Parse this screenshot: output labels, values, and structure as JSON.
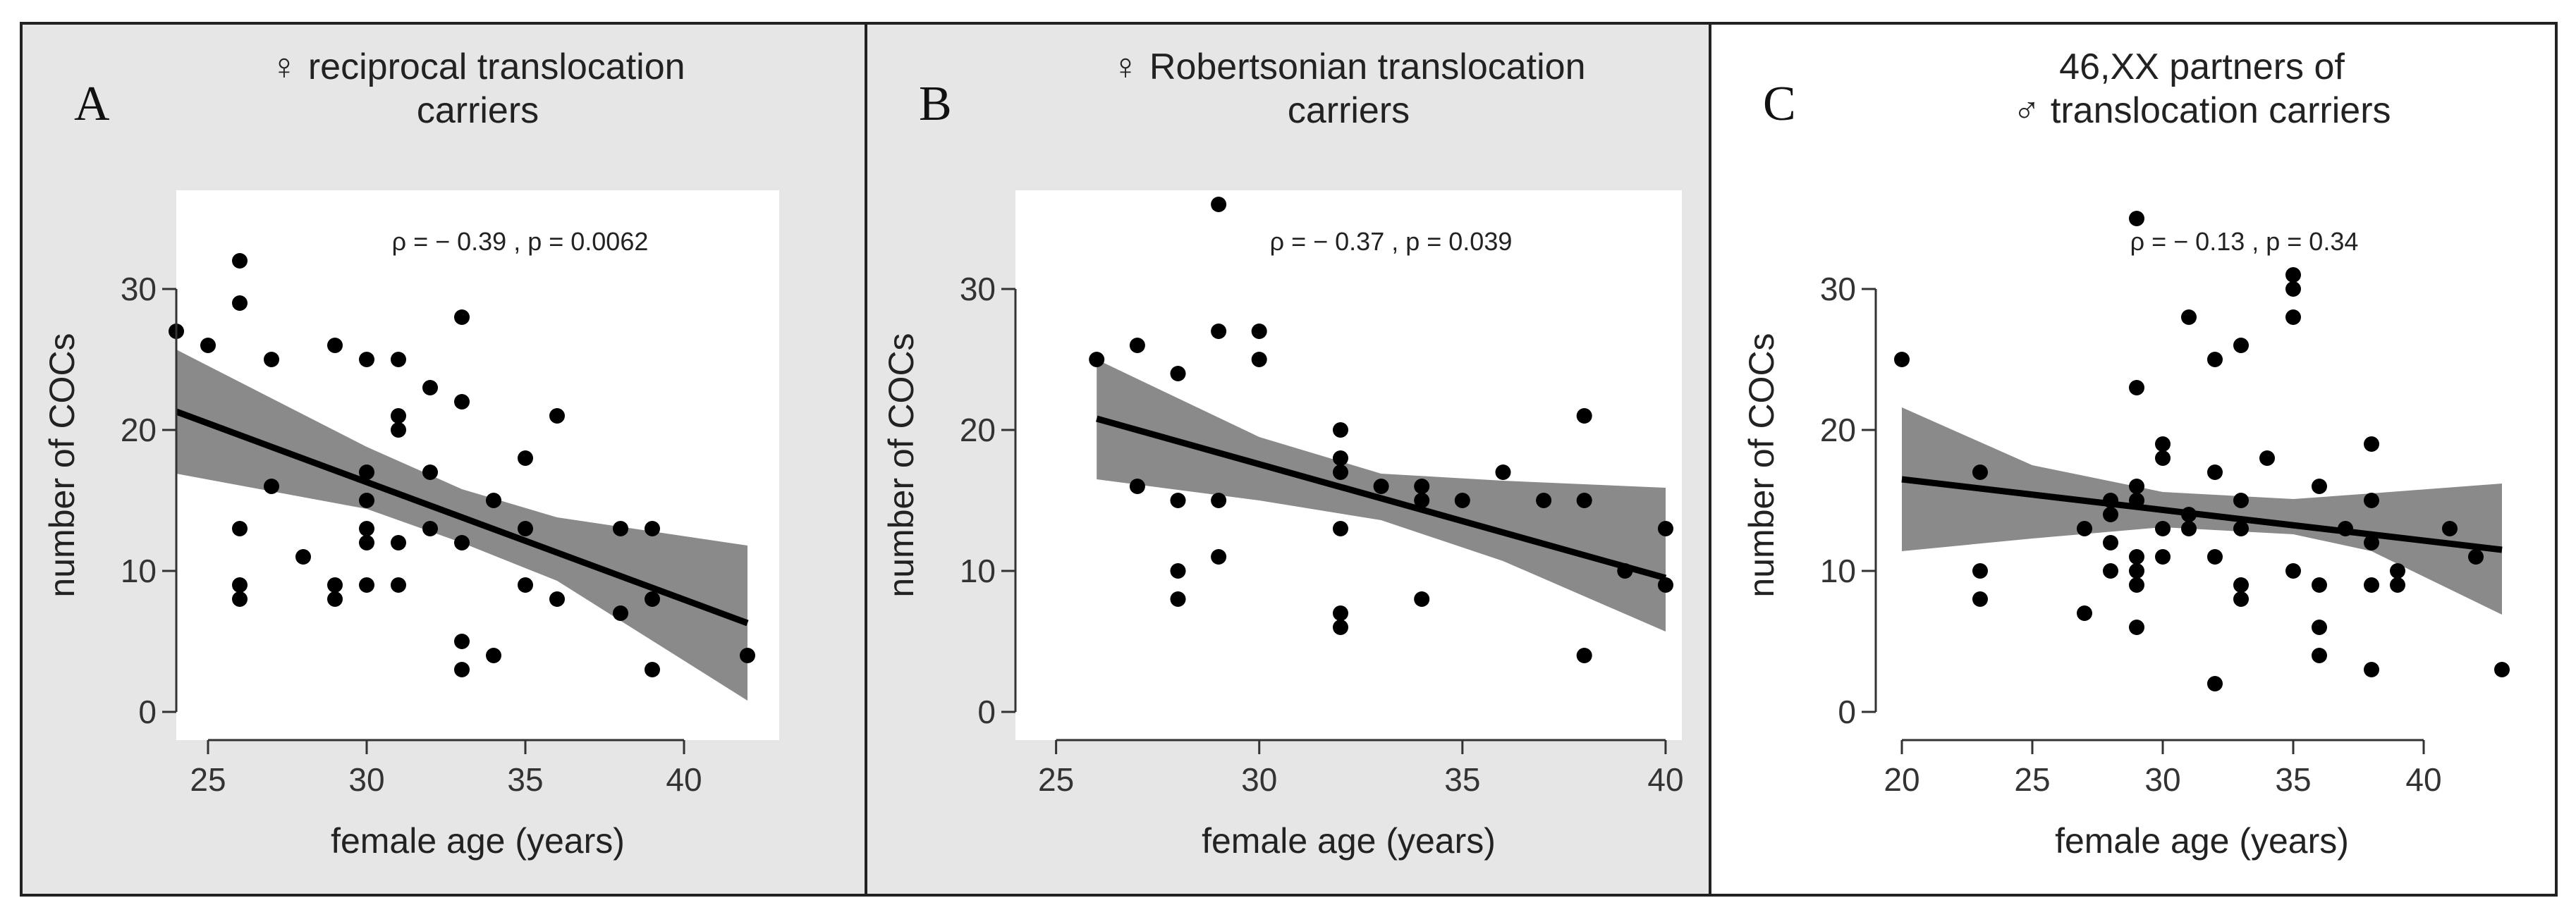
{
  "chart_data": [
    {
      "type": "scatter",
      "panel_label": "A",
      "title": [
        "♀ reciprocal translocation",
        "carriers"
      ],
      "xlabel": "female age (years)",
      "ylabel": "number of COCs",
      "annotation": "ρ  =  − 0.39  ,  p  =  0.0062",
      "xlim": [
        24,
        43
      ],
      "ylim": [
        -2,
        37
      ],
      "xticks": [
        25,
        30,
        35,
        40
      ],
      "yticks": [
        0,
        10,
        20,
        30
      ],
      "background": "#e6e6e6",
      "points": [
        [
          24,
          27
        ],
        [
          25,
          26
        ],
        [
          26,
          32
        ],
        [
          26,
          29
        ],
        [
          26,
          13
        ],
        [
          26,
          9
        ],
        [
          26,
          8
        ],
        [
          27,
          25
        ],
        [
          27,
          16
        ],
        [
          28,
          11
        ],
        [
          29,
          26
        ],
        [
          29,
          9
        ],
        [
          29,
          8
        ],
        [
          30,
          25
        ],
        [
          30,
          17
        ],
        [
          30,
          15
        ],
        [
          30,
          13
        ],
        [
          30,
          12
        ],
        [
          30,
          9
        ],
        [
          31,
          25
        ],
        [
          31,
          21
        ],
        [
          31,
          20
        ],
        [
          31,
          12
        ],
        [
          31,
          9
        ],
        [
          32,
          23
        ],
        [
          32,
          17
        ],
        [
          32,
          13
        ],
        [
          33,
          28
        ],
        [
          33,
          22
        ],
        [
          33,
          12
        ],
        [
          33,
          5
        ],
        [
          33,
          3
        ],
        [
          34,
          15
        ],
        [
          34,
          4
        ],
        [
          35,
          18
        ],
        [
          35,
          13
        ],
        [
          35,
          9
        ],
        [
          36,
          21
        ],
        [
          36,
          8
        ],
        [
          38,
          13
        ],
        [
          38,
          7
        ],
        [
          39,
          13
        ],
        [
          39,
          8
        ],
        [
          39,
          3
        ],
        [
          42,
          4
        ]
      ],
      "fit": {
        "x": [
          24,
          42
        ],
        "y": [
          21.3,
          6.3
        ]
      },
      "band": {
        "x": [
          24,
          30,
          33,
          36,
          42
        ],
        "upper": [
          25.7,
          18.8,
          15.8,
          13.8,
          11.8
        ],
        "lower": [
          16.9,
          14.4,
          12.0,
          9.3,
          0.8
        ]
      }
    },
    {
      "type": "scatter",
      "panel_label": "B",
      "title": [
        "♀ Robertsonian translocation",
        "carriers"
      ],
      "xlabel": "female age (years)",
      "ylabel": "number of COCs",
      "annotation": "ρ  =  − 0.37  ,  p  =  0.039",
      "xlim": [
        24,
        40.4
      ],
      "ylim": [
        -2,
        37
      ],
      "xticks": [
        25,
        30,
        35,
        40
      ],
      "yticks": [
        0,
        10,
        20,
        30
      ],
      "background": "#e6e6e6",
      "points": [
        [
          26,
          25
        ],
        [
          27,
          26
        ],
        [
          27,
          16
        ],
        [
          28,
          24
        ],
        [
          28,
          15
        ],
        [
          28,
          10
        ],
        [
          28,
          8
        ],
        [
          29,
          36
        ],
        [
          29,
          27
        ],
        [
          29,
          15
        ],
        [
          29,
          11
        ],
        [
          30,
          27
        ],
        [
          30,
          25
        ],
        [
          32,
          20
        ],
        [
          32,
          18
        ],
        [
          32,
          17
        ],
        [
          32,
          13
        ],
        [
          32,
          7
        ],
        [
          32,
          6
        ],
        [
          33,
          16
        ],
        [
          34,
          16
        ],
        [
          34,
          15
        ],
        [
          34,
          8
        ],
        [
          35,
          15
        ],
        [
          36,
          17
        ],
        [
          37,
          15
        ],
        [
          38,
          21
        ],
        [
          38,
          15
        ],
        [
          38,
          4
        ],
        [
          39,
          10
        ],
        [
          40,
          13
        ],
        [
          40,
          9
        ]
      ],
      "fit": {
        "x": [
          26,
          40
        ],
        "y": [
          20.8,
          9.5
        ]
      },
      "band": {
        "x": [
          26,
          30,
          33,
          36,
          40
        ],
        "upper": [
          25.0,
          19.5,
          16.9,
          16.4,
          15.9
        ],
        "lower": [
          16.5,
          15.0,
          13.6,
          10.7,
          5.7
        ]
      }
    },
    {
      "type": "scatter",
      "panel_label": "C",
      "title": [
        "46,XX partners of",
        "♂ translocation carriers"
      ],
      "xlabel": "female age (years)",
      "ylabel": "number of COCs",
      "annotation": "ρ  =  − 0.13  ,  p  =  0.34",
      "xlim": [
        19,
        44
      ],
      "ylim": [
        -2,
        37
      ],
      "xticks": [
        20,
        25,
        30,
        35,
        40
      ],
      "yticks": [
        0,
        10,
        20,
        30
      ],
      "background": "#ffffff",
      "points": [
        [
          20,
          25
        ],
        [
          23,
          17
        ],
        [
          23,
          10
        ],
        [
          23,
          8
        ],
        [
          27,
          13
        ],
        [
          27,
          7
        ],
        [
          28,
          15
        ],
        [
          28,
          14
        ],
        [
          28,
          12
        ],
        [
          28,
          10
        ],
        [
          29,
          35
        ],
        [
          29,
          23
        ],
        [
          29,
          16
        ],
        [
          29,
          15
        ],
        [
          29,
          11
        ],
        [
          29,
          10
        ],
        [
          29,
          9
        ],
        [
          29,
          6
        ],
        [
          30,
          19
        ],
        [
          30,
          18
        ],
        [
          30,
          13
        ],
        [
          30,
          11
        ],
        [
          31,
          28
        ],
        [
          31,
          14
        ],
        [
          31,
          13
        ],
        [
          32,
          25
        ],
        [
          32,
          17
        ],
        [
          32,
          11
        ],
        [
          32,
          2
        ],
        [
          33,
          26
        ],
        [
          33,
          15
        ],
        [
          33,
          13
        ],
        [
          33,
          9
        ],
        [
          33,
          8
        ],
        [
          34,
          18
        ],
        [
          35,
          31
        ],
        [
          35,
          30
        ],
        [
          35,
          28
        ],
        [
          35,
          10
        ],
        [
          36,
          16
        ],
        [
          36,
          9
        ],
        [
          36,
          6
        ],
        [
          36,
          4
        ],
        [
          37,
          13
        ],
        [
          38,
          19
        ],
        [
          38,
          15
        ],
        [
          38,
          12
        ],
        [
          38,
          9
        ],
        [
          38,
          3
        ],
        [
          39,
          10
        ],
        [
          39,
          9
        ],
        [
          41,
          13
        ],
        [
          42,
          11
        ],
        [
          43,
          3
        ]
      ],
      "fit": {
        "x": [
          20,
          43
        ],
        "y": [
          16.5,
          11.5
        ]
      },
      "band": {
        "x": [
          20,
          25,
          30,
          35,
          38,
          43
        ],
        "upper": [
          21.6,
          17.5,
          15.6,
          15.1,
          15.5,
          16.2
        ],
        "lower": [
          11.4,
          12.3,
          13.1,
          12.6,
          11.4,
          6.9
        ]
      }
    }
  ]
}
